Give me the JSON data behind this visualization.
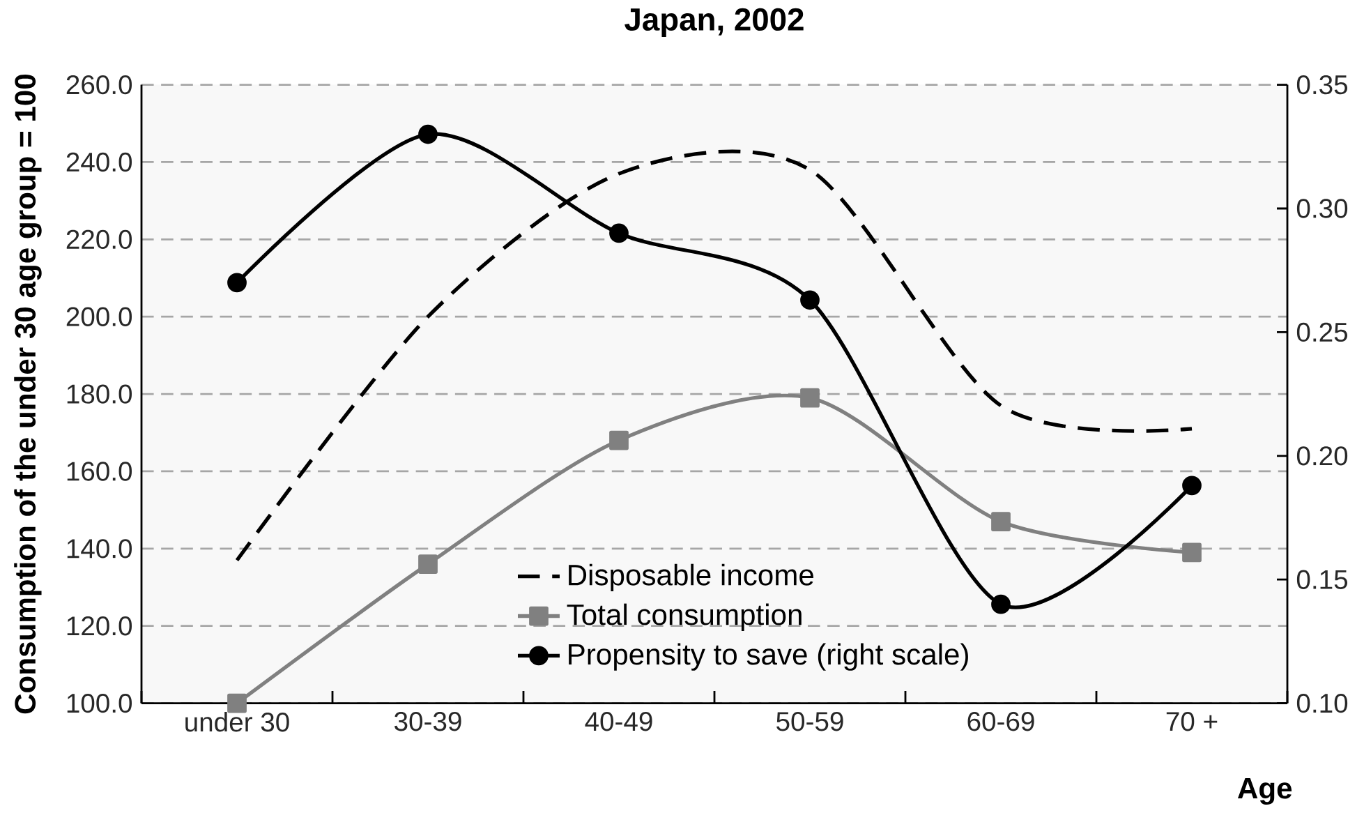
{
  "chart_data": {
    "type": "line",
    "title": "Japan, 2002",
    "xlabel": "Age",
    "ylabel": "Consumption of the under 30 age group = 100",
    "categories": [
      "under 30",
      "30-39",
      "40-49",
      "50-59",
      "60-69",
      "70 +"
    ],
    "series": [
      {
        "name": "Disposable income",
        "color": "#000000",
        "line_style": "dashed",
        "marker": "none",
        "values": [
          137,
          200,
          237,
          238,
          177,
          171
        ]
      },
      {
        "name": "Total consumption",
        "color": "#808080",
        "line_style": "solid",
        "marker": "square",
        "values": [
          100,
          136,
          168,
          179,
          147,
          139
        ]
      },
      {
        "name": "Propensity to save (right scale)",
        "color": "#000000",
        "line_style": "solid",
        "marker": "circle",
        "axis": "y2",
        "values": [
          0.27,
          0.33,
          0.29,
          0.263,
          0.14,
          0.188
        ]
      }
    ],
    "ylim": [
      100,
      260
    ],
    "yticks": [
      {
        "value": 100,
        "label": "100.0"
      },
      {
        "value": 120,
        "label": "120.0"
      },
      {
        "value": 140,
        "label": "140.0"
      },
      {
        "value": 160,
        "label": "160.0"
      },
      {
        "value": 180,
        "label": "180.0"
      },
      {
        "value": 200,
        "label": "200.0"
      },
      {
        "value": 220,
        "label": "220.0"
      },
      {
        "value": 240,
        "label": "240.0"
      },
      {
        "value": 260,
        "label": "260.0"
      }
    ],
    "y2lim": [
      0.1,
      0.35
    ],
    "y2ticks": [
      {
        "value": 0.1,
        "label": "0.10"
      },
      {
        "value": 0.15,
        "label": "0.15"
      },
      {
        "value": 0.2,
        "label": "0.20"
      },
      {
        "value": 0.25,
        "label": "0.25"
      },
      {
        "value": 0.3,
        "label": "0.30"
      },
      {
        "value": 0.35,
        "label": "0.35"
      }
    ],
    "grid": "y",
    "legend": "bottom"
  }
}
